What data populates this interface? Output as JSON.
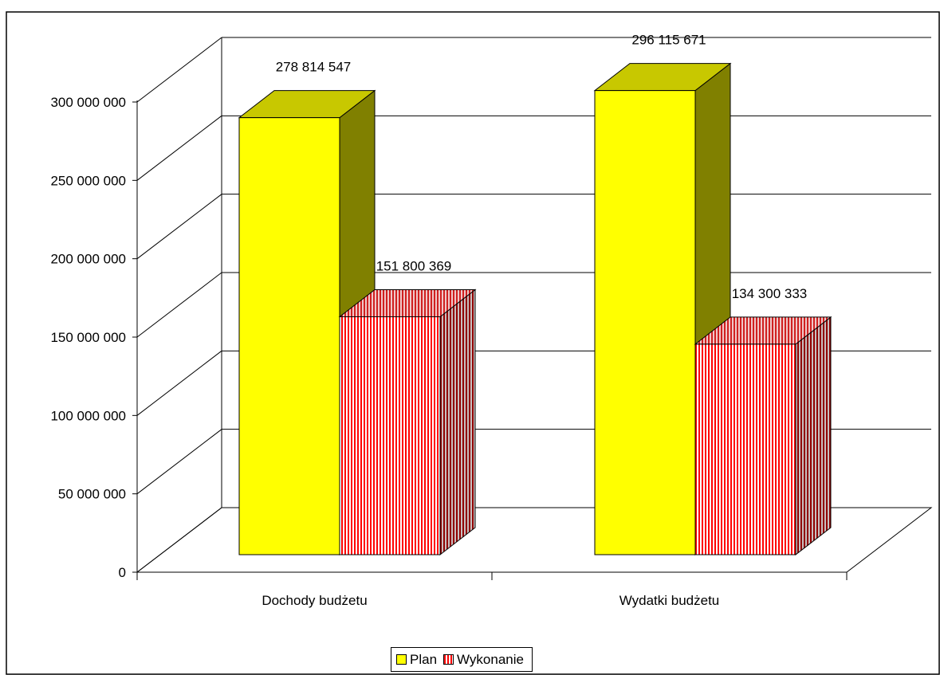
{
  "chart_data": {
    "type": "bar",
    "categories": [
      "Dochody budżetu",
      "Wydatki budżetu"
    ],
    "series": [
      {
        "name": "Plan",
        "values": [
          278814547,
          296115671
        ],
        "labels": [
          "278 814 547",
          "296 115 671"
        ]
      },
      {
        "name": "Wykonanie",
        "values": [
          151800369,
          134300333
        ],
        "labels": [
          "151 800 369",
          "134 300 333"
        ]
      }
    ],
    "ylim": [
      0,
      300000000
    ],
    "yticks": [
      0,
      50000000,
      100000000,
      150000000,
      200000000,
      250000000,
      300000000
    ],
    "ytick_labels": [
      "0",
      "50 000 000",
      "100 000 000",
      "150 000 000",
      "200 000 000",
      "250 000 000",
      "300 000 000"
    ],
    "grid": true,
    "legend_position": "bottom",
    "colors": {
      "plan": "#ffff00",
      "wykonanie": "#ff0000",
      "grid": "#000000"
    }
  }
}
